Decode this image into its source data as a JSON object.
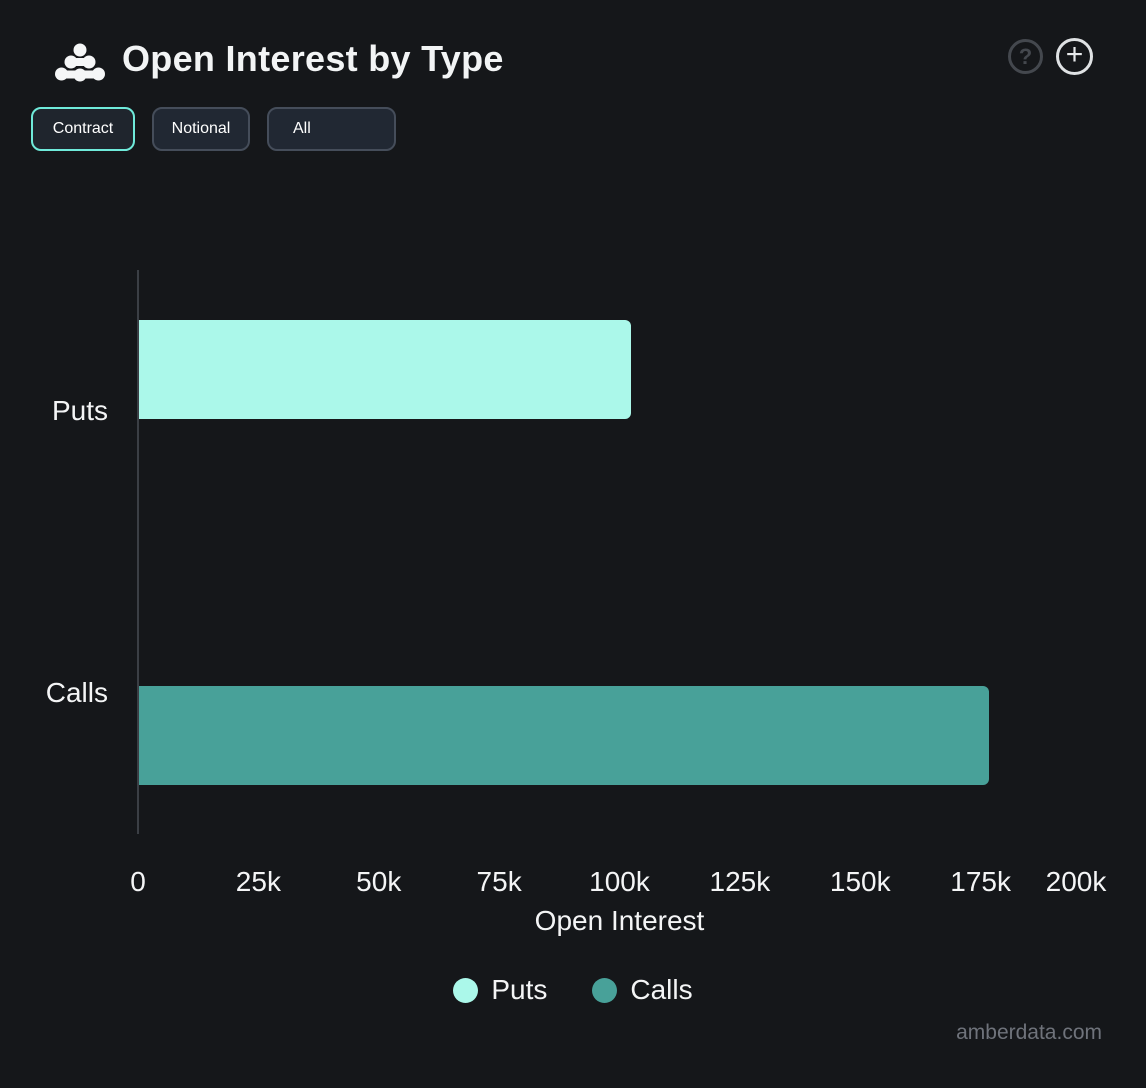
{
  "header": {
    "title": "Open Interest by Type",
    "help_glyph": "?",
    "add_glyph": "+"
  },
  "toolbar": {
    "buttons": [
      {
        "label": "Contract",
        "active": true,
        "kind": "toggle"
      },
      {
        "label": "Notional",
        "active": false,
        "kind": "toggle"
      },
      {
        "label": "All",
        "active": false,
        "kind": "dropdown"
      }
    ]
  },
  "chart_data": {
    "type": "bar",
    "orientation": "horizontal",
    "categories": [
      "Puts",
      "Calls"
    ],
    "series": [
      {
        "name": "Puts",
        "color": "#abf8ea",
        "values": [
          102200,
          0
        ]
      },
      {
        "name": "Calls",
        "color": "#48a199",
        "values": [
          0,
          176600
        ]
      }
    ],
    "xlabel": "Open Interest",
    "xlim": [
      0,
      200000
    ],
    "x_ticks": [
      {
        "value": 0,
        "label": "0"
      },
      {
        "value": 25000,
        "label": "25k"
      },
      {
        "value": 50000,
        "label": "50k"
      },
      {
        "value": 75000,
        "label": "75k"
      },
      {
        "value": 100000,
        "label": "100k"
      },
      {
        "value": 125000,
        "label": "125k"
      },
      {
        "value": 150000,
        "label": "150k"
      },
      {
        "value": 175000,
        "label": "175k"
      },
      {
        "value": 200000,
        "label": "200k"
      }
    ],
    "grid": false,
    "legend": {
      "position": "bottom",
      "items": [
        {
          "label": "Puts",
          "color": "#abf8ea"
        },
        {
          "label": "Calls",
          "color": "#48a199"
        }
      ]
    }
  },
  "watermark": "amberdata.com",
  "colors": {
    "background": "#15171a",
    "accent": "#6feada",
    "puts": "#abf8ea",
    "calls": "#48a199",
    "axis_line": "#3b3f45",
    "text": "#f4f5f6",
    "muted_text": "#6f737b"
  }
}
